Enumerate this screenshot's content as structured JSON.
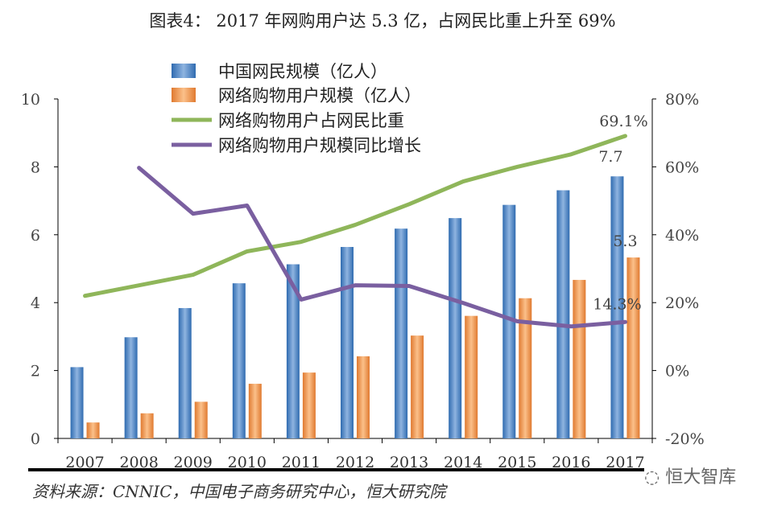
{
  "title": "图表4： 2017 年网购用户达 5.3 亿，占网民比重上升至 69%",
  "source": "资料来源：CNNIC，中国电子商务研究中心，恒大研究院",
  "watermark": "恒大智库",
  "chart_data": {
    "type": "bar+line",
    "categories": [
      "2007",
      "2008",
      "2009",
      "2010",
      "2011",
      "2012",
      "2013",
      "2014",
      "2015",
      "2016",
      "2017"
    ],
    "left_axis": {
      "ylim": [
        0,
        10
      ],
      "ticks": [
        "0",
        "2",
        "4",
        "6",
        "8",
        "10"
      ]
    },
    "right_axis": {
      "ylim": [
        -20,
        80
      ],
      "ticks": [
        "-20%",
        "0%",
        "20%",
        "40%",
        "60%",
        "80%"
      ]
    },
    "legend_placement": "top-center",
    "series": [
      {
        "name": "中国网民规模（亿人）",
        "type": "bar",
        "axis": "left",
        "color": "#3f7fc4",
        "values": [
          2.1,
          2.98,
          3.84,
          4.57,
          5.13,
          5.64,
          6.18,
          6.49,
          6.88,
          7.31,
          7.72
        ]
      },
      {
        "name": "网络购物用户规模（亿人）",
        "type": "bar",
        "axis": "left",
        "color": "#f0924a",
        "values": [
          0.47,
          0.74,
          1.08,
          1.61,
          1.94,
          2.42,
          3.03,
          3.61,
          4.13,
          4.67,
          5.33
        ]
      },
      {
        "name": "网络购物用户占网民比重",
        "type": "line",
        "axis": "right",
        "color": "#8fb65a",
        "values": [
          22.0,
          25.1,
          28.2,
          35.1,
          37.9,
          42.9,
          49.0,
          55.7,
          60.0,
          63.7,
          69.1
        ]
      },
      {
        "name": "网络购物用户规模同比增长",
        "type": "line",
        "axis": "right",
        "color": "#7a5fa0",
        "values": [
          null,
          59.7,
          46.2,
          48.6,
          20.9,
          25.1,
          24.9,
          19.9,
          14.5,
          13.0,
          14.3
        ]
      }
    ],
    "annotations": [
      {
        "text": "69.1%",
        "series": 2,
        "index": 10
      },
      {
        "text": "7.7",
        "series": 0,
        "index": 10
      },
      {
        "text": "5.3",
        "series": 1,
        "index": 10
      },
      {
        "text": "14.3%",
        "series": 3,
        "index": 10
      }
    ]
  }
}
